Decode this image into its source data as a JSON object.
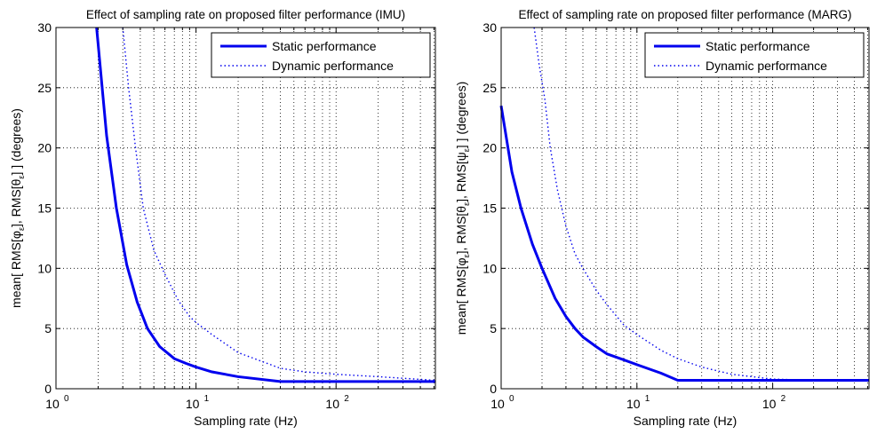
{
  "chart_data": [
    {
      "type": "line",
      "title": "Effect of sampling rate on proposed filter performance (IMU)",
      "xlabel": "Sampling rate (Hz)",
      "ylabel": "mean[ RMS[φ_ε], RMS[θ_ε] ] (degrees)",
      "ylabel_parts": [
        "mean[ RMS[φ",
        "ε",
        "], RMS[θ",
        "ε",
        "] ] (degrees)"
      ],
      "xscale": "log",
      "xlim": [
        1,
        512
      ],
      "ylim": [
        0,
        30
      ],
      "grid": true,
      "legend_position": "top-right",
      "x_ticks": [
        {
          "base": "10",
          "exp": "0",
          "v": 1
        },
        {
          "base": "10",
          "exp": "1",
          "v": 10
        },
        {
          "base": "10",
          "exp": "2",
          "v": 100
        }
      ],
      "y_ticks": [
        "0",
        "5",
        "10",
        "15",
        "20",
        "25",
        "30"
      ],
      "series": [
        {
          "name": "Static performance",
          "style": "solid",
          "color": "#0000ee",
          "x": [
            1.95,
            2.3,
            2.7,
            3.2,
            3.8,
            4.5,
            5.5,
            7,
            8.5,
            10,
            13,
            20,
            40,
            60,
            100,
            200,
            512
          ],
          "y": [
            30,
            21,
            15,
            10.3,
            7.2,
            5,
            3.5,
            2.5,
            2.1,
            1.8,
            1.4,
            1.0,
            0.6,
            0.6,
            0.6,
            0.6,
            0.6
          ]
        },
        {
          "name": "Dynamic performance",
          "style": "dotted",
          "color": "#0000ee",
          "x": [
            3.0,
            3.3,
            3.7,
            4.2,
            5,
            6,
            7.5,
            9,
            10,
            13,
            20,
            40,
            60,
            100,
            200,
            512
          ],
          "y": [
            30,
            25,
            20,
            15,
            11.5,
            9.5,
            7.3,
            6,
            5.5,
            4.5,
            3.0,
            1.7,
            1.4,
            1.2,
            1.0,
            0.7
          ]
        }
      ]
    },
    {
      "type": "line",
      "title": "Effect of sampling rate on proposed filter performance (MARG)",
      "xlabel": "Sampling rate (Hz)",
      "ylabel": "mean[ RMS[φ_ε], RMS[θ_ε], RMS[ψ_ε] ] (degrees)",
      "ylabel_parts": [
        "mean[ RMS[φ",
        "ε",
        "], RMS[θ",
        "ε",
        "], RMS[ψ",
        "ε",
        "] ] (degrees)"
      ],
      "xscale": "log",
      "xlim": [
        1,
        512
      ],
      "ylim": [
        0,
        30
      ],
      "grid": true,
      "legend_position": "top-right",
      "x_ticks": [
        {
          "base": "10",
          "exp": "0",
          "v": 1
        },
        {
          "base": "10",
          "exp": "1",
          "v": 10
        },
        {
          "base": "10",
          "exp": "2",
          "v": 100
        }
      ],
      "y_ticks": [
        "0",
        "5",
        "10",
        "15",
        "20",
        "25",
        "30"
      ],
      "series": [
        {
          "name": "Static performance",
          "style": "solid",
          "color": "#0000ee",
          "x": [
            1,
            1.2,
            1.4,
            1.7,
            2.0,
            2.5,
            3.0,
            3.5,
            4,
            5,
            6,
            8,
            10,
            15,
            20,
            40,
            100,
            200,
            512
          ],
          "y": [
            23.5,
            18,
            15,
            12,
            10,
            7.5,
            6,
            5.0,
            4.3,
            3.5,
            2.9,
            2.4,
            2.0,
            1.3,
            0.7,
            0.7,
            0.7,
            0.7,
            0.7
          ]
        },
        {
          "name": "Dynamic performance",
          "style": "dotted",
          "color": "#0000ee",
          "x": [
            1.75,
            1.9,
            2.1,
            2.3,
            2.6,
            3.0,
            3.5,
            4,
            5,
            6,
            8,
            10,
            15,
            20,
            30,
            50,
            100,
            200,
            512
          ],
          "y": [
            30,
            27,
            24,
            20,
            16.5,
            13.5,
            11.2,
            10,
            8.2,
            7.0,
            5.3,
            4.5,
            3.2,
            2.5,
            1.8,
            1.2,
            0.8,
            0.7,
            0.7
          ]
        }
      ]
    }
  ]
}
